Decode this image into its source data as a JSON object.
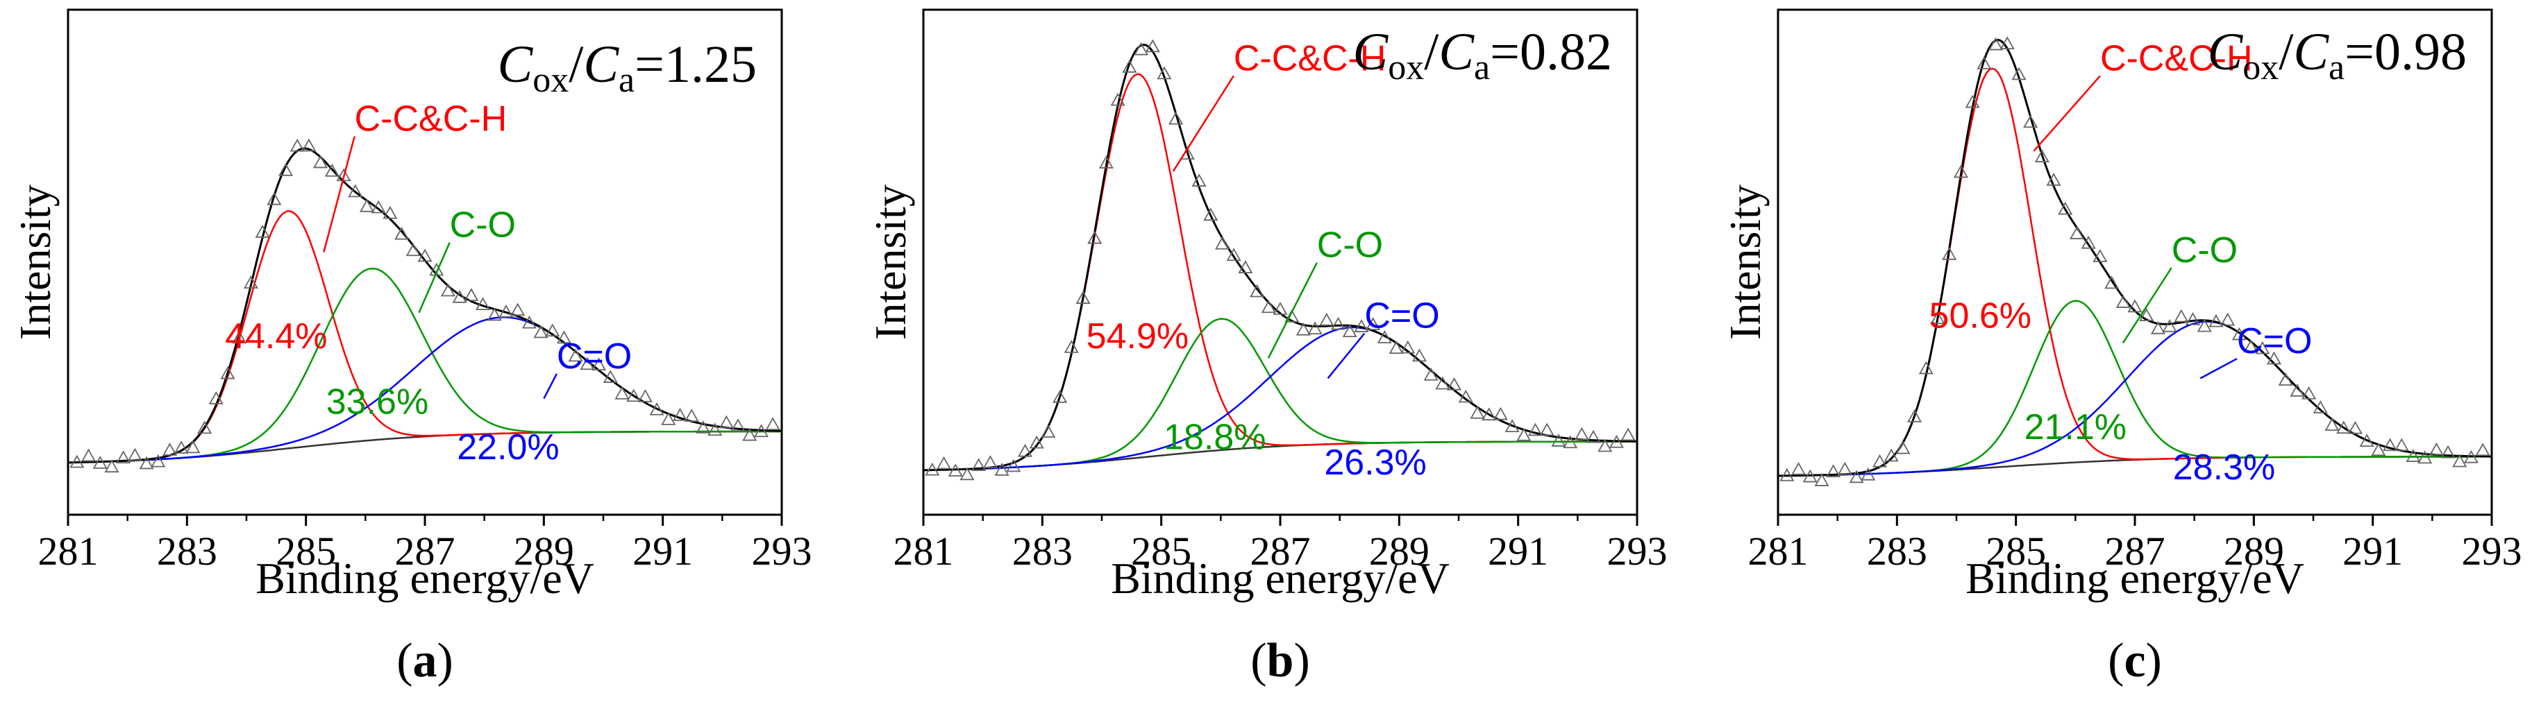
{
  "figure": {
    "colors": {
      "envelope": "#000000",
      "background_line": "#333333",
      "cc": "#ff0000",
      "co": "#009900",
      "c_eq_o": "#0000ff",
      "marker": "#666666"
    }
  },
  "chart_data": [
    {
      "type": "line",
      "panel": "(a)",
      "panel_letter": "a",
      "ratio": {
        "c_ox": "C",
        "ox": "ox",
        "slash": "/",
        "c_a": "C",
        "a": "a",
        "value": "=1.25"
      },
      "xlabel": "Binding energy/eV",
      "ylabel": "Intensity",
      "xlim": [
        281,
        293
      ],
      "ylim": [
        0,
        1
      ],
      "x_ticks": [
        "281",
        "283",
        "285",
        "287",
        "289",
        "291",
        "293"
      ],
      "baseline": {
        "start": 0.1,
        "end": 0.165,
        "mid": 284.8,
        "width": 1.3
      },
      "series": [
        {
          "name": "C-C&C-H",
          "label": "C-C&C-H",
          "percent": "44.4%",
          "center": 284.7,
          "height": 0.47,
          "fwhm": 1.6
        },
        {
          "name": "C-O",
          "label": "C-O",
          "percent": "33.6%",
          "center": 286.1,
          "height": 0.34,
          "fwhm": 2.0
        },
        {
          "name": "C=O",
          "label": "C=O",
          "percent": "22.0%",
          "center": 288.3,
          "height": 0.23,
          "fwhm": 3.4
        }
      ],
      "annotations": [
        {
          "series": "C-C&C-H",
          "text_x": 286.4,
          "text_y": 0.76,
          "point_x": 285.3,
          "point_y": 0.52
        },
        {
          "series": "C-O",
          "text_x": 288.0,
          "text_y": 0.55,
          "point_x": 286.9,
          "point_y": 0.4
        },
        {
          "series": "C=O",
          "text_x": 289.8,
          "text_y": 0.29,
          "point_x": 289.0,
          "point_y": 0.23
        }
      ],
      "pct_positions": [
        {
          "series": "C-C&C-H",
          "x": 284.5,
          "y": 0.33
        },
        {
          "series": "C-O",
          "x": 286.2,
          "y": 0.2
        },
        {
          "series": "C=O",
          "x": 288.4,
          "y": 0.11
        }
      ]
    },
    {
      "type": "line",
      "panel": "(b)",
      "panel_letter": "b",
      "ratio": {
        "c_ox": "C",
        "ox": "ox",
        "slash": "/",
        "c_a": "C",
        "a": "a",
        "value": "=0.82"
      },
      "xlabel": "Binding energy/eV",
      "ylabel": "Intensity",
      "xlim": [
        281,
        293
      ],
      "ylim": [
        0,
        1
      ],
      "x_ticks": [
        "281",
        "283",
        "285",
        "287",
        "289",
        "291",
        "293"
      ],
      "baseline": {
        "start": 0.085,
        "end": 0.145,
        "mid": 284.8,
        "width": 1.3
      },
      "series": [
        {
          "name": "C-C&C-H",
          "label": "C-C&C-H",
          "percent": "54.9%",
          "center": 284.6,
          "height": 0.76,
          "fwhm": 1.65
        },
        {
          "name": "C-O",
          "label": "C-O",
          "percent": "18.8%",
          "center": 286.0,
          "height": 0.26,
          "fwhm": 1.75
        },
        {
          "name": "C=O",
          "label": "C=O",
          "percent": "26.3%",
          "center": 288.2,
          "height": 0.23,
          "fwhm": 3.2
        }
      ],
      "annotations": [
        {
          "series": "C-C&C-H",
          "text_x": 286.8,
          "text_y": 0.88,
          "point_x": 285.2,
          "point_y": 0.68
        },
        {
          "series": "C-O",
          "text_x": 288.2,
          "text_y": 0.51,
          "point_x": 286.8,
          "point_y": 0.31
        },
        {
          "series": "C=O",
          "text_x": 289.0,
          "text_y": 0.37,
          "point_x": 287.8,
          "point_y": 0.27
        }
      ],
      "pct_positions": [
        {
          "series": "C-C&C-H",
          "x": 284.6,
          "y": 0.33
        },
        {
          "series": "C-O",
          "x": 285.9,
          "y": 0.13
        },
        {
          "series": "C=O",
          "x": 288.6,
          "y": 0.08
        }
      ]
    },
    {
      "type": "line",
      "panel": "(c)",
      "panel_letter": "c",
      "ratio": {
        "c_ox": "C",
        "ox": "ox",
        "slash": "/",
        "c_a": "C",
        "a": "a",
        "value": "=0.98"
      },
      "xlabel": "Binding energy/eV",
      "ylabel": "Intensity",
      "xlim": [
        281,
        293
      ],
      "ylim": [
        0,
        1
      ],
      "x_ticks": [
        "281",
        "283",
        "285",
        "287",
        "289",
        "291",
        "293"
      ],
      "baseline": {
        "start": 0.075,
        "end": 0.115,
        "mid": 284.8,
        "width": 1.3
      },
      "series": [
        {
          "name": "C-C&C-H",
          "label": "C-C&C-H",
          "percent": "50.6%",
          "center": 284.6,
          "height": 0.79,
          "fwhm": 1.55
        },
        {
          "name": "C-O",
          "label": "C-O",
          "percent": "21.1%",
          "center": 286.0,
          "height": 0.32,
          "fwhm": 1.65
        },
        {
          "name": "C=O",
          "label": "C=O",
          "percent": "28.3%",
          "center": 288.2,
          "height": 0.27,
          "fwhm": 3.1
        }
      ],
      "annotations": [
        {
          "series": "C-C&C-H",
          "text_x": 287.0,
          "text_y": 0.88,
          "point_x": 285.3,
          "point_y": 0.72
        },
        {
          "series": "C-O",
          "text_x": 288.2,
          "text_y": 0.5,
          "point_x": 286.8,
          "point_y": 0.34
        },
        {
          "series": "C=O",
          "text_x": 289.3,
          "text_y": 0.32,
          "point_x": 288.1,
          "point_y": 0.27
        }
      ],
      "pct_positions": [
        {
          "series": "C-C&C-H",
          "x": 284.4,
          "y": 0.37
        },
        {
          "series": "C-O",
          "x": 286.0,
          "y": 0.15
        },
        {
          "series": "C=O",
          "x": 288.5,
          "y": 0.07
        }
      ]
    }
  ]
}
